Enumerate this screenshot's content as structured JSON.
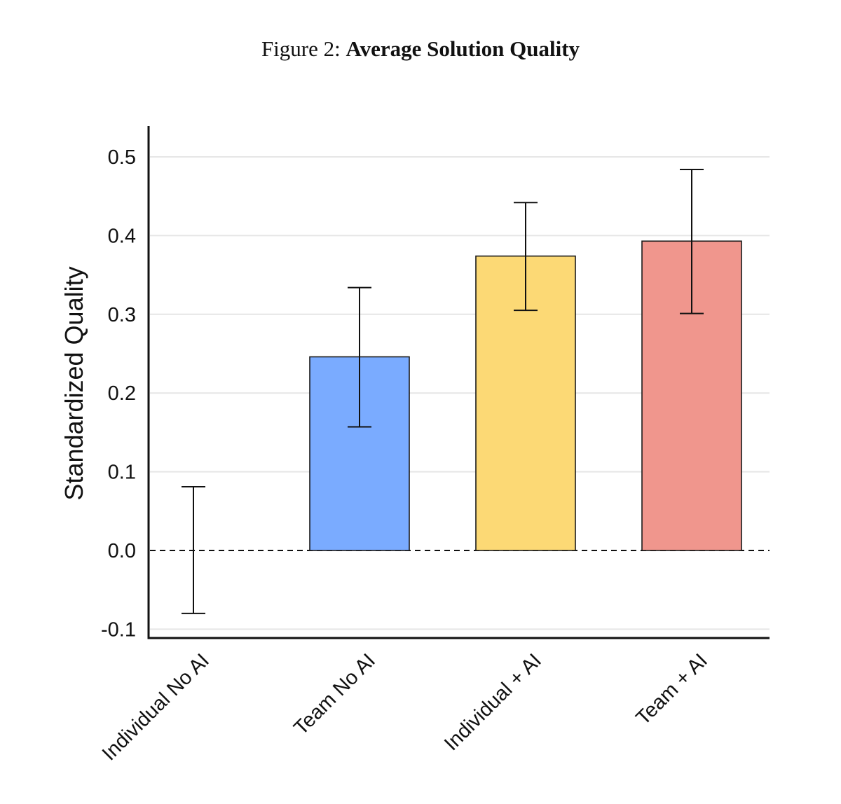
{
  "figure": {
    "prefix": "Figure 2:",
    "title": "Average Solution Quality"
  },
  "chart_data": {
    "type": "bar",
    "title": "Average Solution Quality",
    "xlabel": "",
    "ylabel": "Standardized Quality",
    "categories": [
      "Individual No AI",
      "Team No AI",
      "Individual + AI",
      "Team + AI"
    ],
    "values": [
      0.0,
      0.246,
      0.374,
      0.393
    ],
    "error_low": [
      -0.08,
      0.157,
      0.305,
      0.301
    ],
    "error_high": [
      0.081,
      0.334,
      0.442,
      0.484
    ],
    "colors": [
      "#ffffff",
      "#7aabff",
      "#fcd975",
      "#f0968d"
    ],
    "ylim": [
      -0.11,
      0.54
    ],
    "yticks": [
      -0.1,
      0.0,
      0.1,
      0.2,
      0.3,
      0.4,
      0.5
    ],
    "ytick_labels": [
      "-0.1",
      "0.0",
      "0.1",
      "0.2",
      "0.3",
      "0.4",
      "0.5"
    ],
    "grid": true,
    "reference_line": 0.0,
    "legend": "none"
  }
}
